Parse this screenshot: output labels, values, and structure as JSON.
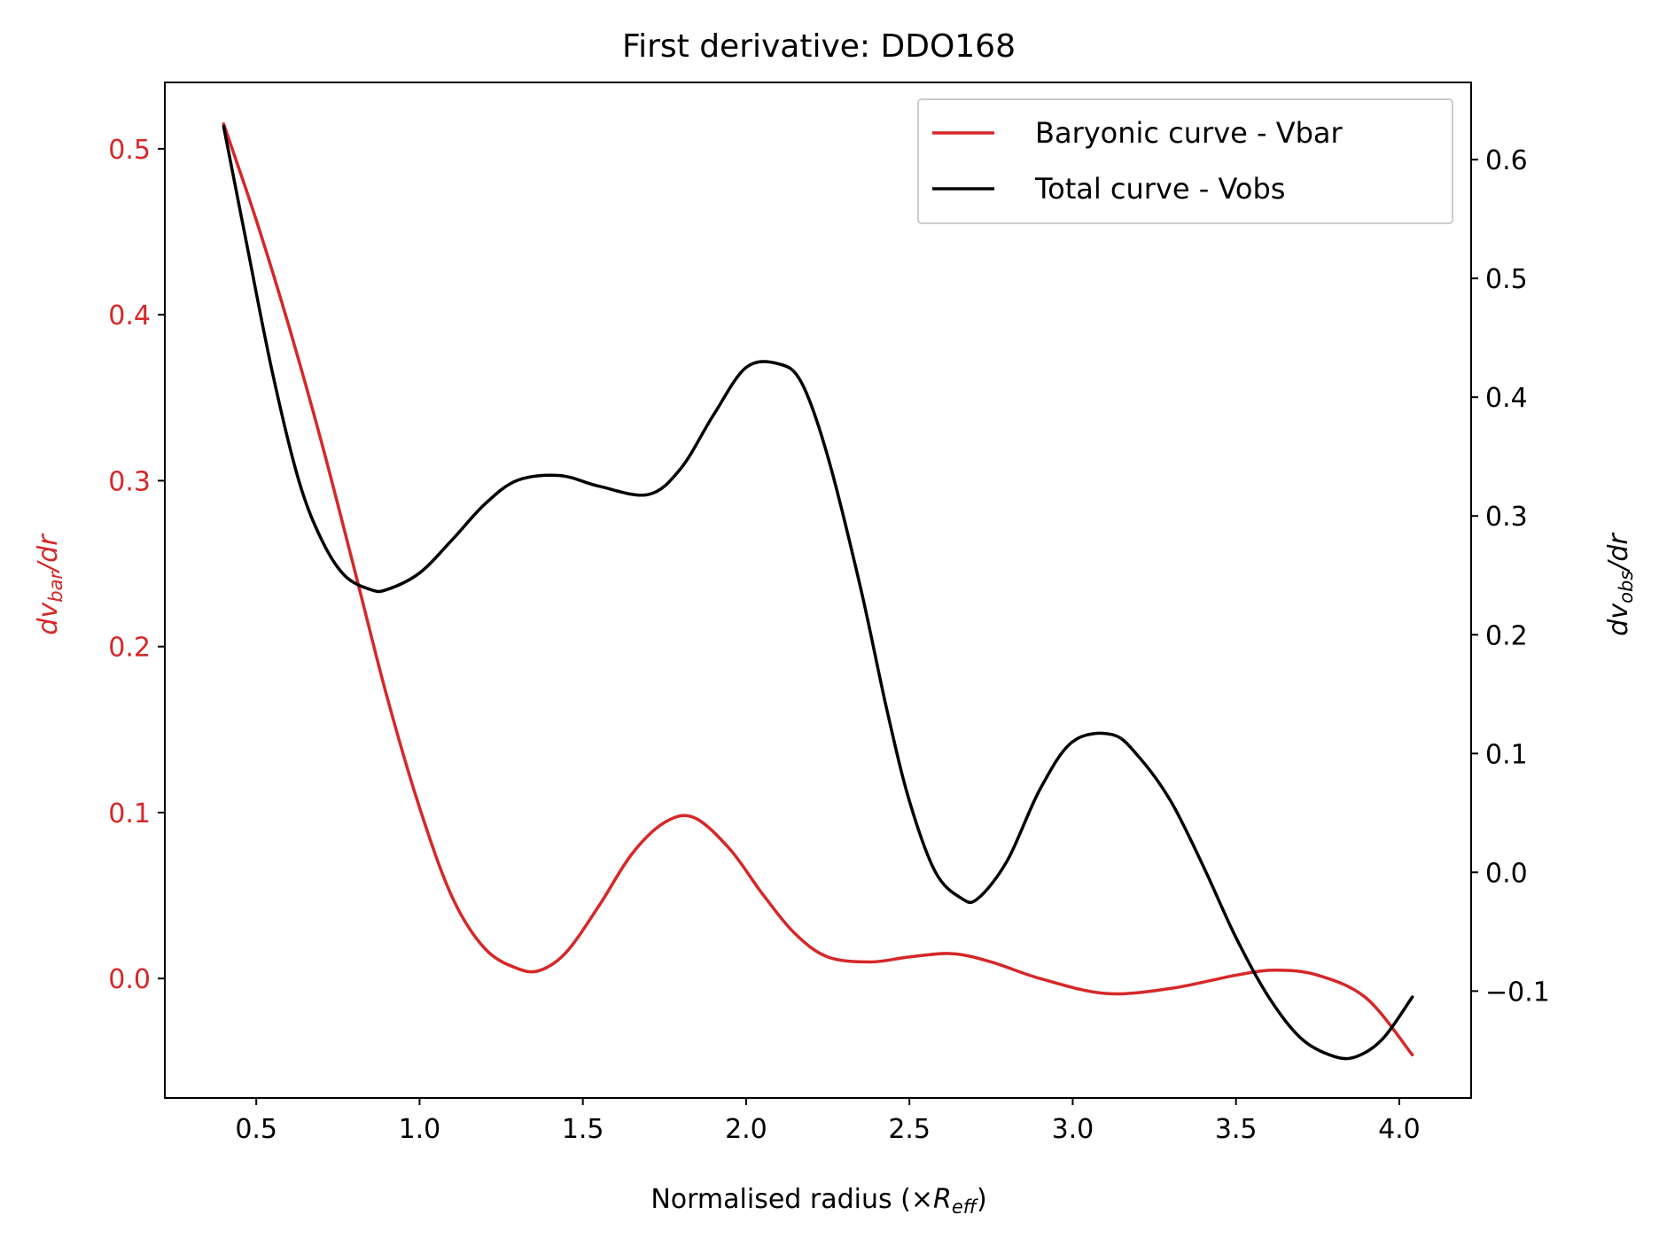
{
  "chart_data": {
    "type": "line",
    "title": "First derivative: DDO168",
    "xlabel_main": "Normalised radius (×",
    "xlabel_sym": "R",
    "xlabel_sub": "eff",
    "xlabel_close": ")",
    "ylabel_left": {
      "prefix": "dv",
      "sub": "bar",
      "suffix": "/dr"
    },
    "ylabel_right": {
      "prefix": "dv",
      "sub": "obs",
      "suffix": "/dr"
    },
    "xlim": [
      0.22,
      4.22
    ],
    "ylim_left": [
      -0.072,
      0.54
    ],
    "ylim_right": [
      -0.19,
      0.665
    ],
    "x_ticks": [
      {
        "value": 0.5,
        "label": "0.5"
      },
      {
        "value": 1.0,
        "label": "1.0"
      },
      {
        "value": 1.5,
        "label": "1.5"
      },
      {
        "value": 2.0,
        "label": "2.0"
      },
      {
        "value": 2.5,
        "label": "2.5"
      },
      {
        "value": 3.0,
        "label": "3.0"
      },
      {
        "value": 3.5,
        "label": "3.5"
      },
      {
        "value": 4.0,
        "label": "4.0"
      }
    ],
    "y_left_ticks": [
      {
        "value": 0.0,
        "label": "0.0"
      },
      {
        "value": 0.1,
        "label": "0.1"
      },
      {
        "value": 0.2,
        "label": "0.2"
      },
      {
        "value": 0.3,
        "label": "0.3"
      },
      {
        "value": 0.4,
        "label": "0.4"
      },
      {
        "value": 0.5,
        "label": "0.5"
      }
    ],
    "y_right_ticks": [
      {
        "value": -0.1,
        "label": "−0.1"
      },
      {
        "value": 0.0,
        "label": "0.0"
      },
      {
        "value": 0.1,
        "label": "0.1"
      },
      {
        "value": 0.2,
        "label": "0.2"
      },
      {
        "value": 0.3,
        "label": "0.3"
      },
      {
        "value": 0.4,
        "label": "0.4"
      },
      {
        "value": 0.5,
        "label": "0.5"
      },
      {
        "value": 0.6,
        "label": "0.6"
      }
    ],
    "legend_position": "upper right",
    "series": [
      {
        "name": "Baryonic curve - Vbar",
        "axis": "left",
        "color": "#d62728",
        "x": [
          0.4,
          0.5,
          0.6,
          0.7,
          0.8,
          0.9,
          1.0,
          1.1,
          1.2,
          1.3,
          1.37,
          1.45,
          1.55,
          1.65,
          1.75,
          1.84,
          1.95,
          2.05,
          2.15,
          2.25,
          2.38,
          2.5,
          2.63,
          2.75,
          2.9,
          3.1,
          3.3,
          3.5,
          3.62,
          3.75,
          3.9,
          4.04
        ],
        "y": [
          0.515,
          0.457,
          0.393,
          0.323,
          0.247,
          0.17,
          0.103,
          0.049,
          0.018,
          0.006,
          0.005,
          0.016,
          0.044,
          0.075,
          0.094,
          0.097,
          0.078,
          0.051,
          0.027,
          0.013,
          0.01,
          0.013,
          0.015,
          0.01,
          0.0,
          -0.009,
          -0.006,
          0.002,
          0.005,
          0.002,
          -0.012,
          -0.046
        ]
      },
      {
        "name": "Total curve - Vobs",
        "axis": "right",
        "color": "#000000",
        "x": [
          0.4,
          0.47,
          0.55,
          0.63,
          0.7,
          0.77,
          0.85,
          0.9,
          1.0,
          1.1,
          1.2,
          1.3,
          1.43,
          1.55,
          1.7,
          1.8,
          1.9,
          2.0,
          2.1,
          2.17,
          2.25,
          2.35,
          2.43,
          2.5,
          2.58,
          2.66,
          2.71,
          2.8,
          2.9,
          3.0,
          3.12,
          3.2,
          3.3,
          3.4,
          3.5,
          3.6,
          3.7,
          3.8,
          3.87,
          3.95,
          4.04
        ],
        "y": [
          0.628,
          0.53,
          0.42,
          0.33,
          0.28,
          0.25,
          0.238,
          0.238,
          0.252,
          0.28,
          0.31,
          0.33,
          0.334,
          0.325,
          0.318,
          0.34,
          0.385,
          0.425,
          0.428,
          0.412,
          0.35,
          0.24,
          0.138,
          0.06,
          0.0,
          -0.022,
          -0.022,
          0.01,
          0.07,
          0.11,
          0.116,
          0.098,
          0.06,
          0.005,
          -0.055,
          -0.105,
          -0.14,
          -0.155,
          -0.155,
          -0.14,
          -0.105
        ]
      }
    ]
  }
}
